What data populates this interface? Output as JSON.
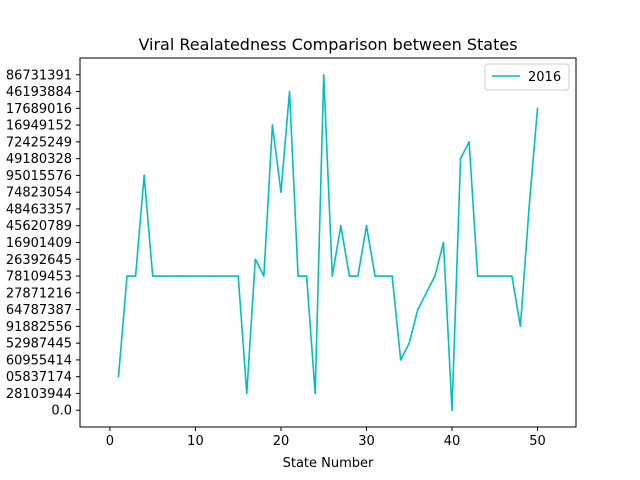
{
  "chart_data": {
    "type": "line",
    "title": "Viral Realatedness Comparison between States",
    "xlabel": "State Number",
    "ylabel": "",
    "xlim": [
      -3.5,
      54.5
    ],
    "ylim": [
      -1.0,
      21.0
    ],
    "x_ticks": [
      0,
      10,
      20,
      30,
      40,
      50
    ],
    "y_ticks": [
      0,
      1,
      2,
      3,
      4,
      5,
      6,
      7,
      8,
      9,
      10,
      11,
      12,
      13,
      14,
      15,
      16,
      17,
      18,
      19,
      20
    ],
    "y_tick_labels": [
      "0.0",
      "28103944",
      "05837174",
      "60955414",
      "52987445",
      "91882556",
      "64787387",
      "27871216",
      "78109453",
      "26392645",
      "16901409",
      "45620789",
      "48463357",
      "74823054",
      "95015576",
      "49180328",
      "72425249",
      "16949152",
      "17689016",
      "46193884",
      "86731391"
    ],
    "legend": {
      "position": "top-right",
      "entries": [
        "2016"
      ]
    },
    "grid": false,
    "series": [
      {
        "name": "2016",
        "color": "#00bfbf",
        "x": [
          1,
          2,
          3,
          4,
          5,
          6,
          7,
          8,
          9,
          10,
          11,
          12,
          13,
          14,
          15,
          16,
          17,
          18,
          19,
          20,
          21,
          22,
          23,
          24,
          25,
          26,
          27,
          28,
          29,
          30,
          31,
          32,
          33,
          34,
          35,
          36,
          37,
          38,
          39,
          40,
          41,
          42,
          43,
          44,
          45,
          46,
          47,
          48,
          49,
          50
        ],
        "y": [
          2,
          8,
          8,
          14,
          8,
          8,
          8,
          8,
          8,
          8,
          8,
          8,
          8,
          8,
          8,
          1,
          9,
          8,
          17,
          13,
          19,
          8,
          8,
          1,
          20,
          8,
          11,
          8,
          8,
          11,
          8,
          8,
          8,
          3,
          4,
          6,
          7,
          8,
          10,
          0,
          15,
          16,
          8,
          8,
          8,
          8,
          8,
          5,
          12,
          18
        ]
      }
    ]
  }
}
